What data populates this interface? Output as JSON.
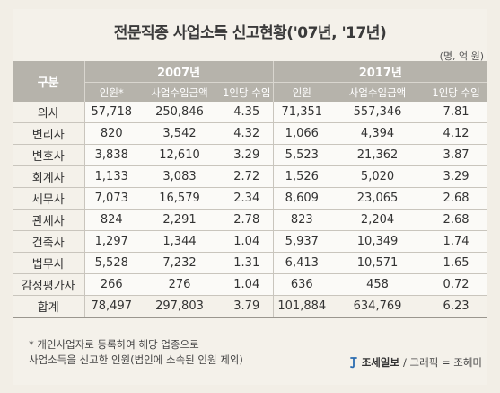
{
  "title": "전문직종 사업소득 신고현황('07년, '17년)",
  "unit": "(명, 억 원)",
  "table": {
    "row_header": "구분",
    "groups": [
      "2007년",
      "2017년"
    ],
    "subheaders": [
      "인원*",
      "사업수입금액",
      "1인당 수입",
      "인원",
      "사업수입금액",
      "1인당 수입"
    ],
    "rows": [
      {
        "label": "의사",
        "values": [
          "57,718",
          "250,846",
          "4.35",
          "71,351",
          "557,346",
          "7.81"
        ]
      },
      {
        "label": "변리사",
        "values": [
          "820",
          "3,542",
          "4.32",
          "1,066",
          "4,394",
          "4.12"
        ]
      },
      {
        "label": "변호사",
        "values": [
          "3,838",
          "12,610",
          "3.29",
          "5,523",
          "21,362",
          "3.87"
        ]
      },
      {
        "label": "회계사",
        "values": [
          "1,133",
          "3,083",
          "2.72",
          "1,526",
          "5,020",
          "3.29"
        ]
      },
      {
        "label": "세무사",
        "values": [
          "7,073",
          "16,579",
          "2.34",
          "8,609",
          "23,065",
          "2.68"
        ]
      },
      {
        "label": "관세사",
        "values": [
          "824",
          "2,291",
          "2.78",
          "823",
          "2,204",
          "2.68"
        ]
      },
      {
        "label": "건축사",
        "values": [
          "1,297",
          "1,344",
          "1.04",
          "5,937",
          "10,349",
          "1.74"
        ]
      },
      {
        "label": "법무사",
        "values": [
          "5,528",
          "7,232",
          "1.31",
          "6,413",
          "10,571",
          "1.65"
        ]
      },
      {
        "label": "감정평가사",
        "values": [
          "266",
          "276",
          "1.04",
          "636",
          "458",
          "0.72"
        ]
      },
      {
        "label": "합계",
        "values": [
          "78,497",
          "297,803",
          "3.79",
          "101,884",
          "634,769",
          "6.23"
        ]
      }
    ]
  },
  "footnote": {
    "line1": "* 개인사업자로 등록하여 해당 업종으로",
    "line2": "사업소득을 신고한 인원(법인에 소속된 인원 제외)"
  },
  "credit": {
    "brand": "조세일보",
    "rest": " / 그래픽 = 조혜미"
  }
}
